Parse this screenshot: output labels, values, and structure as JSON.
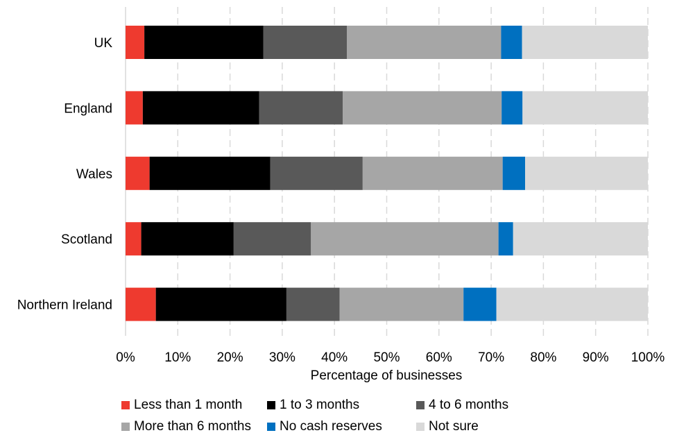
{
  "chart_data": {
    "type": "bar",
    "orientation": "horizontal",
    "stacked": "percent",
    "categories": [
      "UK",
      "England",
      "Wales",
      "Scotland",
      "Northern Ireland"
    ],
    "series": [
      {
        "name": "Less than 1 month",
        "color": "#EE3A2F",
        "values": [
          3.6,
          3.3,
          4.6,
          3.0,
          5.8
        ]
      },
      {
        "name": "1 to 3 months",
        "color": "#000000",
        "values": [
          22.8,
          22.3,
          23.1,
          17.7,
          25.0
        ]
      },
      {
        "name": "4 to 6 months",
        "color": "#595959",
        "values": [
          16.0,
          16.0,
          17.7,
          14.8,
          10.2
        ]
      },
      {
        "name": "More than 6 months",
        "color": "#A6A6A6",
        "values": [
          29.5,
          30.4,
          26.8,
          35.9,
          23.7
        ]
      },
      {
        "name": "No cash reserves",
        "color": "#0070C0",
        "values": [
          4.0,
          4.0,
          4.3,
          2.8,
          6.3
        ]
      },
      {
        "name": "Not sure",
        "color": "#D9D9D9",
        "values": [
          24.1,
          24.0,
          23.5,
          25.8,
          29.0
        ]
      }
    ],
    "xlabel": "Percentage of businesses",
    "ylabel": "",
    "xlim": [
      0,
      100
    ],
    "xticks": [
      "0%",
      "10%",
      "20%",
      "30%",
      "40%",
      "50%",
      "60%",
      "70%",
      "80%",
      "90%",
      "100%"
    ],
    "grid": "vertical dashed",
    "legend_position": "bottom"
  }
}
